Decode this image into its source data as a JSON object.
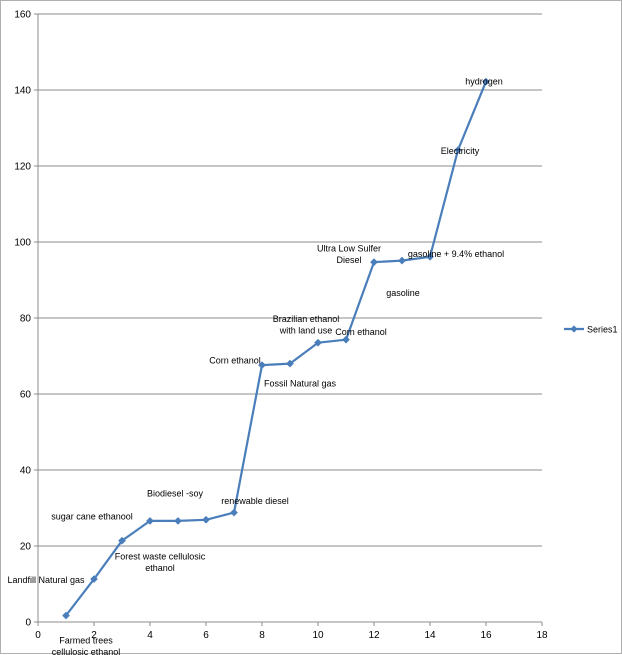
{
  "chart_data": {
    "type": "line",
    "xlim": [
      0,
      18
    ],
    "ylim": [
      0,
      160
    ],
    "x_ticks": [
      0,
      2,
      4,
      6,
      8,
      10,
      12,
      14,
      16,
      18
    ],
    "y_ticks": [
      0,
      20,
      40,
      60,
      80,
      100,
      120,
      140,
      160
    ],
    "grid": "horizontal",
    "legend": "right",
    "colors": {
      "series": "#4a7ebb",
      "grid": "#8c8c8c",
      "axis": "#8c8c8c"
    },
    "series": [
      {
        "name": "Series1",
        "x": [
          1,
          2,
          3,
          4,
          5,
          6,
          7,
          8,
          9,
          10,
          11,
          12,
          13,
          14,
          15,
          16
        ],
        "values": [
          1.7,
          11.3,
          21.4,
          26.6,
          26.6,
          26.9,
          28.8,
          67.6,
          68.0,
          73.5,
          74.3,
          94.7,
          95.1,
          96.1,
          124.2,
          142.2
        ]
      }
    ],
    "annotations": [
      {
        "lines": [
          "Landfill Natural gas"
        ],
        "x": 1,
        "y": 11
      },
      {
        "lines": [
          "Farmed trees",
          "cellulosic ethanol"
        ],
        "x": 2,
        "y": -2
      },
      {
        "lines": [
          "sugar cane ethanool"
        ],
        "x": 3,
        "y": 27
      },
      {
        "lines": [
          "Forest waste cellulosic",
          "ethanol"
        ],
        "x": 4,
        "y": 17
      },
      {
        "lines": [
          "Biodiesel -soy"
        ],
        "x": 5,
        "y": 33
      },
      {
        "lines": [
          "renewable diesel"
        ],
        "x": 7,
        "y": 31
      },
      {
        "lines": [
          "Corn ethanol"
        ],
        "x": 8,
        "y": 68
      },
      {
        "lines": [
          "Fossil Natural gas"
        ],
        "x": 9,
        "y": 62
      },
      {
        "lines": [
          "Brazilian ethanol",
          "with land use"
        ],
        "x": 10,
        "y": 79
      },
      {
        "lines": [
          "Corn ethanol"
        ],
        "x": 11,
        "y": 74
      },
      {
        "lines": [
          "Ultra Low Sulfer",
          "Diesel"
        ],
        "x": 12,
        "y": 97
      },
      {
        "lines": [
          "gasoline"
        ],
        "x": 13,
        "y": 90
      },
      {
        "lines": [
          "gasoline + 9.4% ethanol"
        ],
        "x": 14,
        "y": 96
      },
      {
        "lines": [
          "Electricity"
        ],
        "x": 15,
        "y": 124
      },
      {
        "lines": [
          "hydrogen"
        ],
        "x": 16,
        "y": 142
      }
    ]
  }
}
